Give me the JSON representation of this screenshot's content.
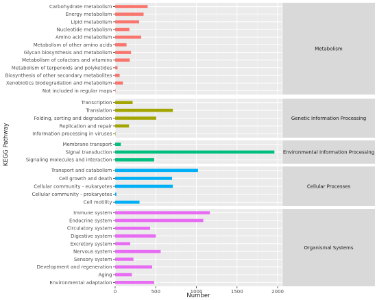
{
  "chart_data": {
    "type": "bar",
    "orientation": "horizontal",
    "xlabel": "Number",
    "ylabel": "KEGG Pathway",
    "xlim": [
      0,
      2050
    ],
    "xticks": [
      0,
      500,
      1000,
      1500,
      2000
    ],
    "grid": true,
    "facets": [
      {
        "name": "Metabolism",
        "color": "#F8766D",
        "categories": [
          "Carbohydrate metabolism",
          "Energy metabolism",
          "Lipid metabolism",
          "Nucleotide metabolism",
          "Amino acid metabolism",
          "Metabolism of other amino acids",
          "Glycan biosynthesis and metabolism",
          "Metabolism of cofactors and vitamins",
          "Metabolism of terpenoids and polyketides",
          "Biosynthesis of other secondary metabolites",
          "Xenobiotics biodegradation and metabolism",
          "Not included in regular maps"
        ],
        "values": [
          400,
          350,
          295,
          175,
          320,
          140,
          195,
          180,
          30,
          55,
          95,
          5
        ]
      },
      {
        "name": "Genetic Information Processing",
        "color": "#A3A500",
        "categories": [
          "Transcription",
          "Translation",
          "Folding, sorting and degradation",
          "Replication and repair",
          "Information processing in viruses"
        ],
        "values": [
          215,
          710,
          505,
          170,
          5
        ]
      },
      {
        "name": "Environmental Information Processing",
        "color": "#00BF7D",
        "categories": [
          "Membrane transport",
          "Signal transduction",
          "Signaling molecules and interaction"
        ],
        "values": [
          70,
          1960,
          480
        ]
      },
      {
        "name": "Cellular Processes",
        "color": "#00B0F6",
        "categories": [
          "Transport and catabolism",
          "Cell growth and death",
          "Cellular community - eukaryotes",
          "Cellular community - prokaryotes",
          "Cell motility"
        ],
        "values": [
          1020,
          700,
          710,
          15,
          300
        ]
      },
      {
        "name": "Organismal Systems",
        "color": "#E76BF3",
        "categories": [
          "Immune system",
          "Endocrine system",
          "Circulatory system",
          "Digestive system",
          "Excretory system",
          "Nervous system",
          "Sensory system",
          "Development and regeneration",
          "Aging",
          "Environmental adaptation"
        ],
        "values": [
          1165,
          1085,
          430,
          500,
          185,
          560,
          225,
          455,
          205,
          480
        ]
      }
    ]
  }
}
